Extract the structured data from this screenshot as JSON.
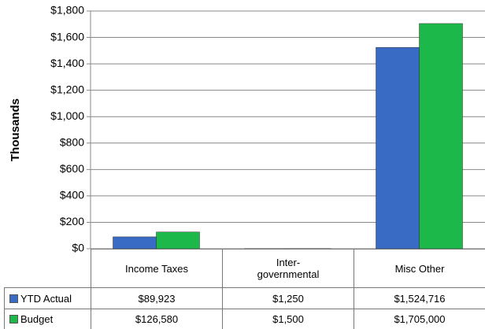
{
  "chart_data": {
    "type": "bar",
    "y_label": "Thousands",
    "categories": [
      "Income Taxes",
      "Inter-governmental",
      "Misc Other"
    ],
    "series": [
      {
        "name": "YTD Actual",
        "color": "#3a6bc4",
        "values": [
          89.923,
          1.25,
          1524.716
        ],
        "value_labels": [
          "$89,923",
          "$1,250",
          "$1,524,716"
        ]
      },
      {
        "name": "Budget",
        "color": "#1cb84a",
        "values": [
          126.58,
          1.5,
          1705
        ],
        "value_labels": [
          "$126,580",
          "$1,500",
          "$1,705,000"
        ]
      }
    ],
    "ylim": [
      0,
      1800
    ],
    "yticks": [
      {
        "value": 0,
        "label": "$0"
      },
      {
        "value": 200,
        "label": "$200"
      },
      {
        "value": 400,
        "label": "$400"
      },
      {
        "value": 600,
        "label": "$600"
      },
      {
        "value": 800,
        "label": "$800"
      },
      {
        "value": 1000,
        "label": "$1,000"
      },
      {
        "value": 1200,
        "label": "$1,200"
      },
      {
        "value": 1400,
        "label": "$1,400"
      },
      {
        "value": 1600,
        "label": "$1,600"
      },
      {
        "value": 1800,
        "label": "$1,800"
      }
    ],
    "grid": true
  }
}
